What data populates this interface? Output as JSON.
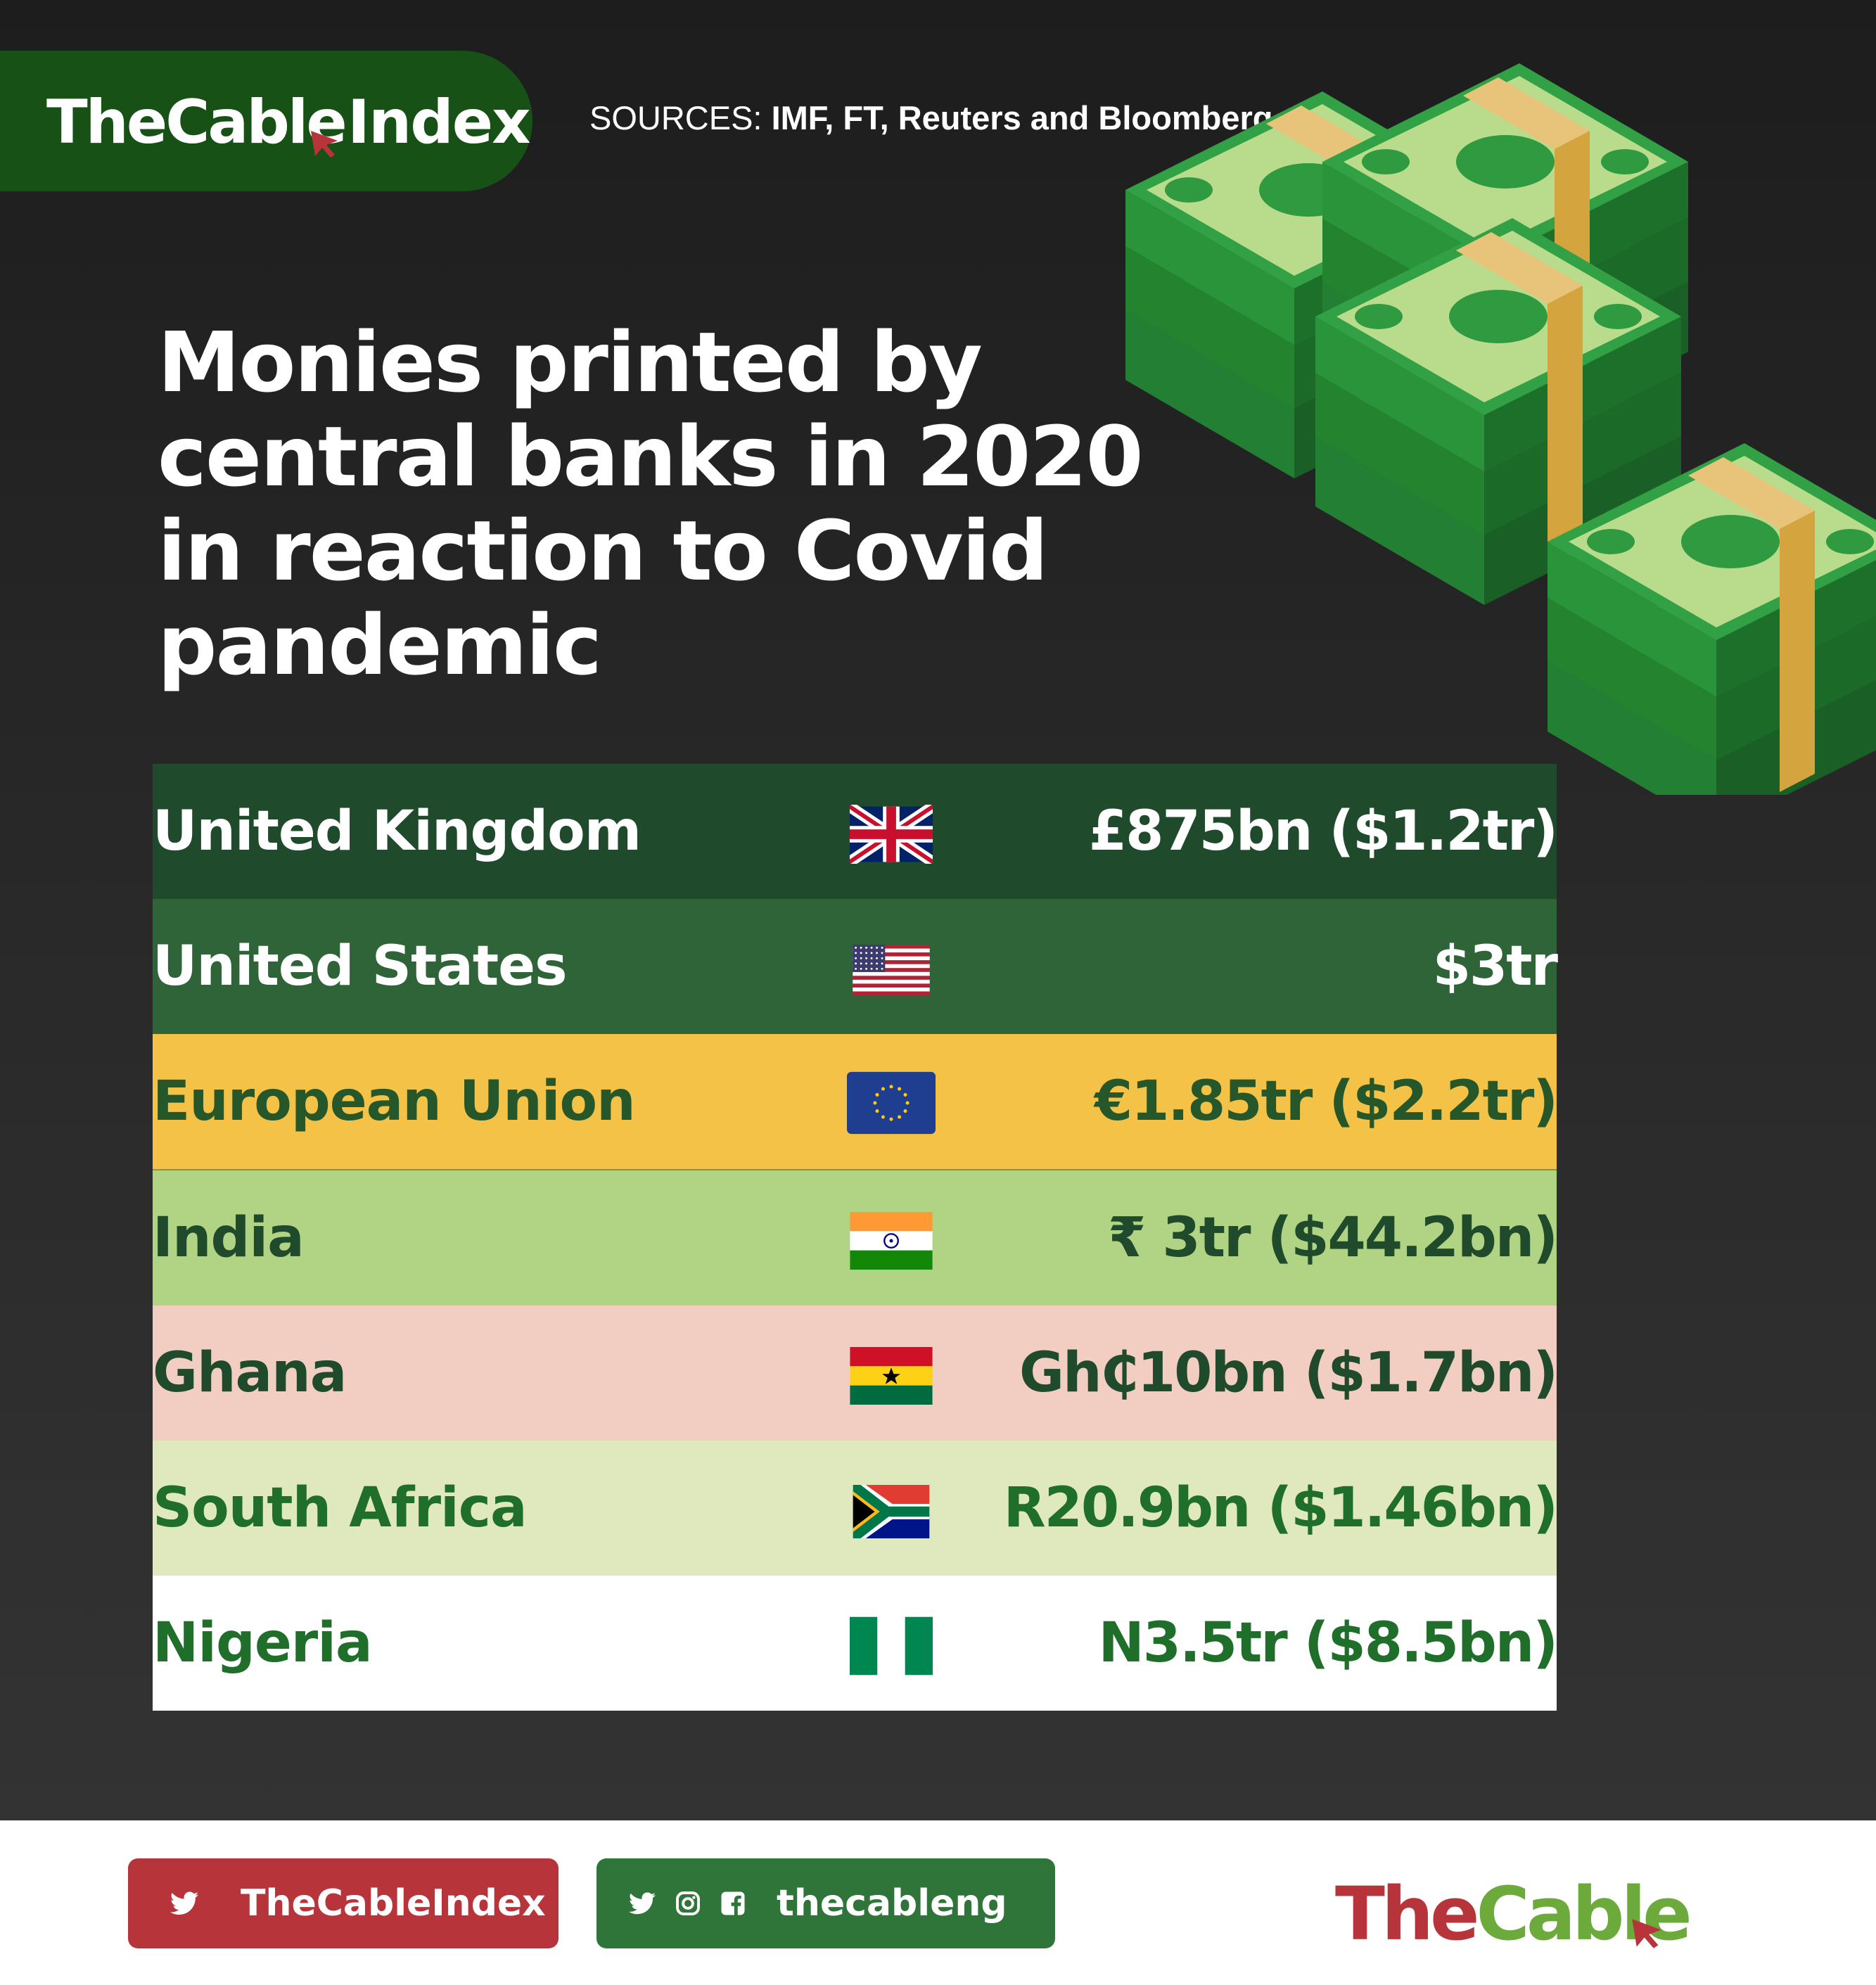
{
  "header": {
    "logo_brand": "TheCable",
    "logo_index": "Index",
    "sources_label": "SOURCES:",
    "sources_list": "IMF, FT, Reuters and Bloomberg"
  },
  "title": {
    "line1": "Monies printed by",
    "line2": "central banks in 2020",
    "line3": "in reaction to Covid",
    "line4": "pandemic"
  },
  "chart_data": {
    "type": "table",
    "columns": [
      "country",
      "flag",
      "amount"
    ],
    "rows": [
      {
        "country": "United Kingdom",
        "flag": "uk-flag-icon",
        "amount": "£875bn ($1.2tr)",
        "bg": "#1f4a2b",
        "fg": "#ffffff"
      },
      {
        "country": "United States",
        "flag": "us-flag-icon",
        "amount": "$3tr",
        "bg": "#2e6438",
        "fg": "#ffffff"
      },
      {
        "country": "European Union",
        "flag": "eu-flag-icon",
        "amount": "€1.85tr ($2.2tr)",
        "bg": "#f4c246",
        "fg": "#25572a"
      },
      {
        "country": "India",
        "flag": "india-flag-icon",
        "amount": "₹ 3tr ($44.2bn)",
        "bg": "#b0d384",
        "fg": "#1f4a2b"
      },
      {
        "country": "Ghana",
        "flag": "ghana-flag-icon",
        "amount": "Gh₵10bn ($1.7bn)",
        "bg": "#f2cec2",
        "fg": "#1f4a2b"
      },
      {
        "country": "South Africa",
        "flag": "south-africa-flag-icon",
        "amount": "R20.9bn ($1.46bn)",
        "bg": "#dfe9bd",
        "fg": "#1f6e2a"
      },
      {
        "country": "Nigeria",
        "flag": "nigeria-flag-icon",
        "amount": "N3.5tr ($8.5bn)",
        "bg": "#ffffff",
        "fg": "#1f6e2a"
      }
    ]
  },
  "footer": {
    "twitter_handle": "TheCableIndex",
    "social_handle": "thecableng",
    "brand_the": "The",
    "brand_cable": "Cable",
    "colors": {
      "red": "#b7353a",
      "green": "#2f7438",
      "light_green": "#6cab3b"
    }
  }
}
